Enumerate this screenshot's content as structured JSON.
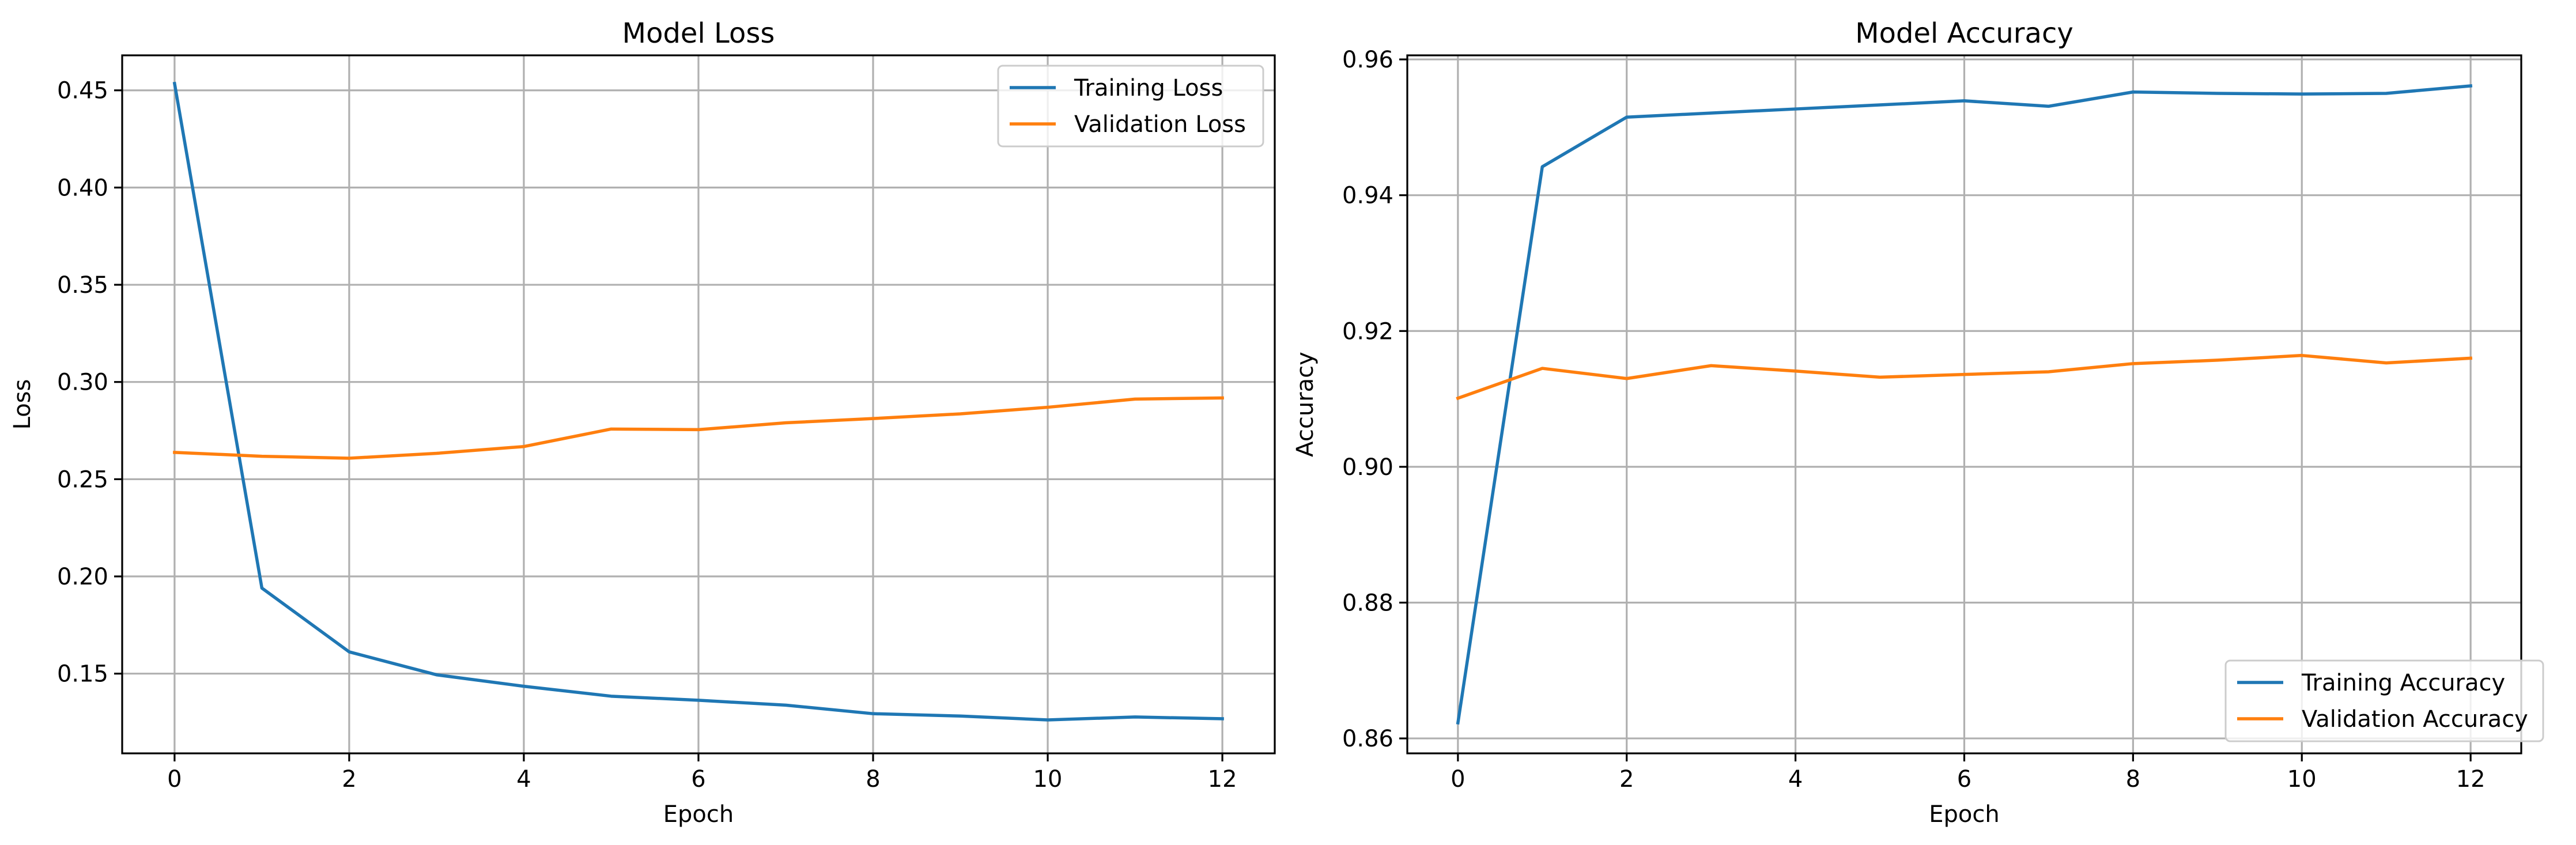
{
  "chart_data": [
    {
      "type": "line",
      "title": "Model Loss",
      "xlabel": "Epoch",
      "ylabel": "Loss",
      "x": [
        0,
        1,
        2,
        3,
        4,
        5,
        6,
        7,
        8,
        9,
        10,
        11,
        12
      ],
      "xlim": [
        -0.6,
        12.6
      ],
      "ylim": [
        0.109,
        0.468
      ],
      "xticks": [
        0,
        2,
        4,
        6,
        8,
        10,
        12
      ],
      "xtick_labels": [
        "0",
        "2",
        "4",
        "6",
        "8",
        "10",
        "12"
      ],
      "yticks": [
        0.15,
        0.2,
        0.25,
        0.3,
        0.35,
        0.4,
        0.45
      ],
      "ytick_labels": [
        "0.15",
        "0.20",
        "0.25",
        "0.30",
        "0.35",
        "0.40",
        "0.45"
      ],
      "grid": true,
      "legend_position": "upper right",
      "series": [
        {
          "name": "Training Loss",
          "color": "#1f77b4",
          "values": [
            0.4535,
            0.194,
            0.1612,
            0.1494,
            0.1435,
            0.1384,
            0.1363,
            0.1338,
            0.1294,
            0.1282,
            0.1262,
            0.1277,
            0.1268
          ]
        },
        {
          "name": "Validation Loss",
          "color": "#ff7f0e",
          "values": [
            0.2638,
            0.2618,
            0.2608,
            0.2633,
            0.2668,
            0.2758,
            0.2755,
            0.279,
            0.2812,
            0.2836,
            0.287,
            0.2912,
            0.2918
          ]
        }
      ]
    },
    {
      "type": "line",
      "title": "Model Accuracy",
      "xlabel": "Epoch",
      "ylabel": "Accuracy",
      "x": [
        0,
        1,
        2,
        3,
        4,
        5,
        6,
        7,
        8,
        9,
        10,
        11,
        12
      ],
      "xlim": [
        -0.6,
        12.6
      ],
      "ylim": [
        0.8578,
        0.9606
      ],
      "xticks": [
        0,
        2,
        4,
        6,
        8,
        10,
        12
      ],
      "xtick_labels": [
        "0",
        "2",
        "4",
        "6",
        "8",
        "10",
        "12"
      ],
      "yticks": [
        0.86,
        0.88,
        0.9,
        0.92,
        0.94,
        0.96
      ],
      "ytick_labels": [
        "0.86",
        "0.88",
        "0.90",
        "0.92",
        "0.94",
        "0.96"
      ],
      "grid": true,
      "legend_position": "lower right",
      "series": [
        {
          "name": "Training Accuracy",
          "color": "#1f77b4",
          "values": [
            0.8623,
            0.9442,
            0.9515,
            0.9521,
            0.9527,
            0.9533,
            0.9539,
            0.9531,
            0.9552,
            0.955,
            0.9549,
            0.955,
            0.9561
          ]
        },
        {
          "name": "Validation Accuracy",
          "color": "#ff7f0e",
          "values": [
            0.9101,
            0.9145,
            0.913,
            0.9149,
            0.9141,
            0.9132,
            0.9136,
            0.914,
            0.9152,
            0.9157,
            0.9164,
            0.9153,
            0.916
          ]
        }
      ]
    }
  ]
}
